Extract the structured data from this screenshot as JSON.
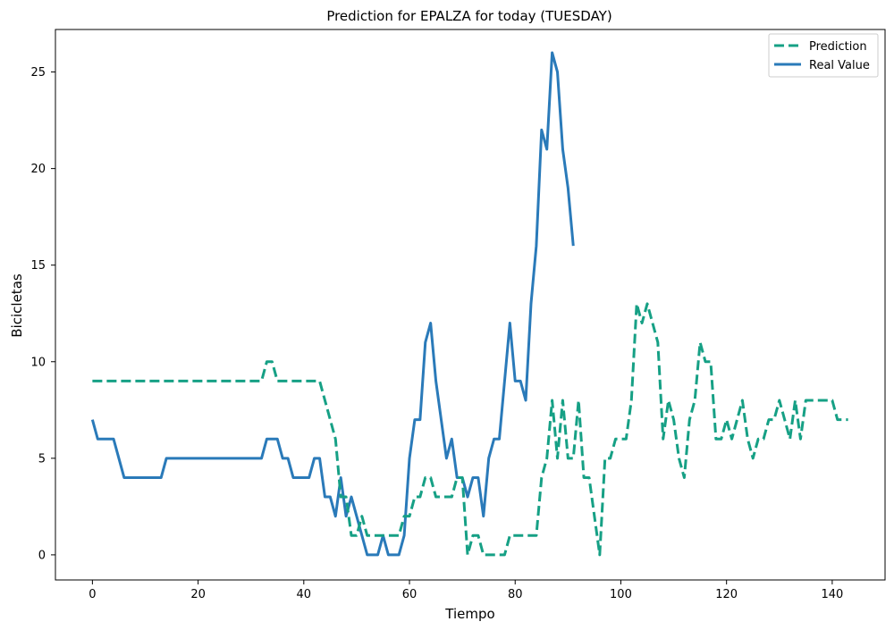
{
  "chart_data": {
    "type": "line",
    "title": "Prediction for EPALZA for today (TUESDAY)",
    "xlabel": "Tiempo",
    "ylabel": "Bicicletas",
    "xlim": [
      -7,
      150
    ],
    "ylim": [
      -1.3,
      27.2
    ],
    "xticks": [
      0,
      20,
      40,
      60,
      80,
      100,
      120,
      140
    ],
    "yticks": [
      0,
      5,
      10,
      15,
      20,
      25
    ],
    "grid": false,
    "legend_position": "top-right",
    "series": [
      {
        "name": "Prediction",
        "color": "#16a085",
        "style": "dashed",
        "x": [
          0,
          1,
          2,
          3,
          4,
          5,
          6,
          7,
          8,
          9,
          10,
          11,
          12,
          13,
          14,
          15,
          16,
          17,
          18,
          19,
          20,
          21,
          22,
          23,
          24,
          25,
          26,
          27,
          28,
          29,
          30,
          31,
          32,
          33,
          34,
          35,
          36,
          37,
          38,
          39,
          40,
          41,
          42,
          43,
          44,
          45,
          46,
          47,
          48,
          49,
          50,
          51,
          52,
          53,
          54,
          55,
          56,
          57,
          58,
          59,
          60,
          61,
          62,
          63,
          64,
          65,
          66,
          67,
          68,
          69,
          70,
          71,
          72,
          73,
          74,
          75,
          76,
          77,
          78,
          79,
          80,
          81,
          82,
          83,
          84,
          85,
          86,
          87,
          88,
          89,
          90,
          91,
          92,
          93,
          94,
          95,
          96,
          97,
          98,
          99,
          100,
          101,
          102,
          103,
          104,
          105,
          106,
          107,
          108,
          109,
          110,
          111,
          112,
          113,
          114,
          115,
          116,
          117,
          118,
          119,
          120,
          121,
          122,
          123,
          124,
          125,
          126,
          127,
          128,
          129,
          130,
          131,
          132,
          133,
          134,
          135,
          136,
          137,
          138,
          139,
          140,
          141,
          142,
          143
        ],
        "values": [
          9,
          9,
          9,
          9,
          9,
          9,
          9,
          9,
          9,
          9,
          9,
          9,
          9,
          9,
          9,
          9,
          9,
          9,
          9,
          9,
          9,
          9,
          9,
          9,
          9,
          9,
          9,
          9,
          9,
          9,
          9,
          9,
          9,
          10,
          10,
          9,
          9,
          9,
          9,
          9,
          9,
          9,
          9,
          9,
          8,
          7,
          6,
          3,
          3,
          1,
          1,
          2,
          1,
          1,
          1,
          1,
          1,
          1,
          1,
          2,
          2,
          3,
          3,
          4,
          4,
          3,
          3,
          3,
          3,
          4,
          4,
          0,
          1,
          1,
          0,
          0,
          0,
          0,
          0,
          1,
          1,
          1,
          1,
          1,
          1,
          4,
          5,
          8,
          5,
          8,
          5,
          5,
          8,
          4,
          4,
          2,
          0,
          5,
          5,
          6,
          6,
          6,
          8,
          13,
          12,
          13,
          12,
          11,
          6,
          8,
          7,
          5,
          4,
          7,
          8,
          11,
          10,
          10,
          6,
          6,
          7,
          6,
          7,
          8,
          6,
          5,
          6,
          6,
          7,
          7,
          8,
          7,
          6,
          8,
          6,
          8,
          8,
          8,
          8,
          8,
          8,
          7,
          7,
          7
        ]
      },
      {
        "name": "Real Value",
        "color": "#2a7ab9",
        "style": "solid",
        "x": [
          0,
          1,
          2,
          3,
          4,
          5,
          6,
          7,
          8,
          9,
          10,
          11,
          12,
          13,
          14,
          15,
          16,
          17,
          18,
          19,
          20,
          21,
          22,
          23,
          24,
          25,
          26,
          27,
          28,
          29,
          30,
          31,
          32,
          33,
          34,
          35,
          36,
          37,
          38,
          39,
          40,
          41,
          42,
          43,
          44,
          45,
          46,
          47,
          48,
          49,
          50,
          51,
          52,
          53,
          54,
          55,
          56,
          57,
          58,
          59,
          60,
          61,
          62,
          63,
          64,
          65,
          66,
          67,
          68,
          69,
          70,
          71,
          72,
          73,
          74,
          75,
          76,
          77,
          78,
          79,
          80,
          81,
          82,
          83,
          84,
          85,
          86,
          87,
          88,
          89,
          90,
          91
        ],
        "values": [
          7,
          6,
          6,
          6,
          6,
          5,
          4,
          4,
          4,
          4,
          4,
          4,
          4,
          4,
          5,
          5,
          5,
          5,
          5,
          5,
          5,
          5,
          5,
          5,
          5,
          5,
          5,
          5,
          5,
          5,
          5,
          5,
          5,
          6,
          6,
          6,
          5,
          5,
          4,
          4,
          4,
          4,
          5,
          5,
          3,
          3,
          2,
          4,
          2,
          3,
          2,
          1,
          0,
          0,
          0,
          1,
          0,
          0,
          0,
          1,
          5,
          7,
          7,
          11,
          12,
          9,
          7,
          5,
          6,
          4,
          4,
          3,
          4,
          4,
          2,
          5,
          6,
          6,
          9,
          12,
          9,
          9,
          8,
          13,
          16,
          22,
          21,
          26,
          25,
          21,
          19,
          16
        ]
      }
    ]
  }
}
